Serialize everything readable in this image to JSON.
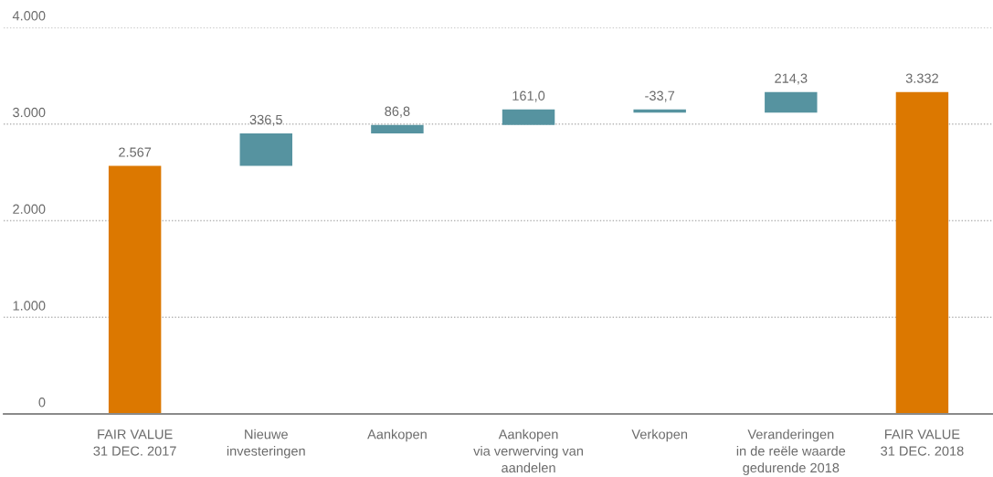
{
  "chart_data": {
    "type": "bar",
    "categories": [
      "FAIR VALUE\n31 DEC. 2017",
      "Nieuwe\ninvesteringen",
      "Aankopen",
      "Aankopen\nvia verwerving van\naandelen",
      "Verkopen",
      "Veranderingen\nin de reële waarde\ngedurende 2018",
      "FAIR VALUE\n31 DEC. 2018"
    ],
    "values": [
      2567,
      336.5,
      86.8,
      161.0,
      -33.7,
      214.3,
      3332
    ],
    "base": [
      0,
      2567,
      2903.5,
      2990.3,
      3151.3,
      3117.6,
      0
    ],
    "colors": [
      "#dc7800",
      "#5693a0",
      "#5693a0",
      "#5693a0",
      "#5693a0",
      "#5693a0",
      "#dc7800"
    ],
    "value_labels": [
      "2.567",
      "336,5",
      "86,8",
      "161,0",
      "-33,7",
      "214,3",
      "3.332"
    ],
    "ylim": [
      0,
      4000
    ],
    "yticks": [
      0,
      {
        "value": 1000,
        "label": "1.000"
      },
      {
        "value": 2000,
        "label": "2.000"
      },
      {
        "value": 3000,
        "label": "3.000"
      },
      {
        "value": 4000,
        "label": "4.000"
      }
    ],
    "grid": "y"
  }
}
